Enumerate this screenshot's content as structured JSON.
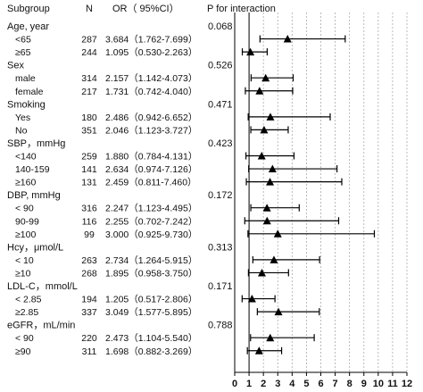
{
  "chart_data": {
    "type": "forest",
    "headers": {
      "subgroup": "Subgroup",
      "n": "N",
      "or": "OR（ 95%CI）",
      "p": "P for interaction"
    },
    "xlim": [
      0,
      12
    ],
    "x_ticks": [
      "0",
      "1",
      "2",
      "3",
      "4",
      "5",
      "6",
      "7",
      "8",
      "9",
      "10",
      "11",
      "12"
    ],
    "reference_line": 1,
    "grid": "dotted vertical",
    "groups": [
      {
        "label": "Age, year",
        "p": "0.068",
        "rows": [
          {
            "label": "<65",
            "n": "287",
            "or_text": "3.684（1.762-7.699）",
            "or": 3.684,
            "lo": 1.762,
            "hi": 7.699
          },
          {
            "label": "≥65",
            "n": "244",
            "or_text": "1.095（0.530-2.263）",
            "or": 1.095,
            "lo": 0.53,
            "hi": 2.263
          }
        ]
      },
      {
        "label": "Sex",
        "p": "0.526",
        "rows": [
          {
            "label": "male",
            "n": "314",
            "or_text": "2.157（1.142-4.073）",
            "or": 2.157,
            "lo": 1.142,
            "hi": 4.073
          },
          {
            "label": "female",
            "n": "217",
            "or_text": "1.731（0.742-4.040）",
            "or": 1.731,
            "lo": 0.742,
            "hi": 4.04
          }
        ]
      },
      {
        "label": "Smoking",
        "p": "0.471",
        "rows": [
          {
            "label": "Yes",
            "n": "180",
            "or_text": "2.486（0.942-6.652）",
            "or": 2.486,
            "lo": 0.942,
            "hi": 6.652
          },
          {
            "label": "No",
            "n": "351",
            "or_text": "2.046（1.123-3.727）",
            "or": 2.046,
            "lo": 1.123,
            "hi": 3.727
          }
        ]
      },
      {
        "label": "SBP，mmHg",
        "p": "0.423",
        "rows": [
          {
            "label": "<140",
            "n": "259",
            "or_text": "1.880（0.784-4.131）",
            "or": 1.88,
            "lo": 0.784,
            "hi": 4.131
          },
          {
            "label": "140-159",
            "n": "141",
            "or_text": "2.634（0.974-7.126）",
            "or": 2.634,
            "lo": 0.974,
            "hi": 7.126
          },
          {
            "label": "≥160",
            "n": "131",
            "or_text": "2.459（0.811-7.460）",
            "or": 2.459,
            "lo": 0.811,
            "hi": 7.46
          }
        ]
      },
      {
        "label": "DBP, mmHg",
        "p": "0.172",
        "rows": [
          {
            "label": "< 90",
            "n": "316",
            "or_text": "2.247（1.123-4.495）",
            "or": 2.247,
            "lo": 1.123,
            "hi": 4.495
          },
          {
            "label": "90-99",
            "n": "116",
            "or_text": "2.255（0.702-7.242）",
            "or": 2.255,
            "lo": 0.702,
            "hi": 7.242
          },
          {
            "label": "≥100",
            "n": "99",
            "or_text": "3.000（0.925-9.730）",
            "or": 3.0,
            "lo": 0.925,
            "hi": 9.73
          }
        ]
      },
      {
        "label": "Hcy，μmol/L",
        "p": "0.313",
        "rows": [
          {
            "label": "< 10",
            "n": "263",
            "or_text": "2.734（1.264-5.915）",
            "or": 2.734,
            "lo": 1.264,
            "hi": 5.915
          },
          {
            "label": "≥10",
            "n": "268",
            "or_text": "1.895（0.958-3.750）",
            "or": 1.895,
            "lo": 0.958,
            "hi": 3.75
          }
        ]
      },
      {
        "label": "LDL-C，mmol/L",
        "p": "0.171",
        "rows": [
          {
            "label": "< 2.85",
            "n": "194",
            "or_text": "1.205（0.517-2.806）",
            "or": 1.205,
            "lo": 0.517,
            "hi": 2.806
          },
          {
            "label": "≥2.85",
            "n": "337",
            "or_text": "3.049（1.577-5.895）",
            "or": 3.049,
            "lo": 1.577,
            "hi": 5.895
          }
        ]
      },
      {
        "label": "eGFR，mL/min",
        "p": "0.788",
        "rows": [
          {
            "label": "< 90",
            "n": "220",
            "or_text": "2.473（1.104-5.540）",
            "or": 2.473,
            "lo": 1.104,
            "hi": 5.54
          },
          {
            "label": "≥90",
            "n": "311",
            "or_text": "1.698（0.882-3.269）",
            "or": 1.698,
            "lo": 0.882,
            "hi": 3.269
          }
        ]
      }
    ]
  }
}
